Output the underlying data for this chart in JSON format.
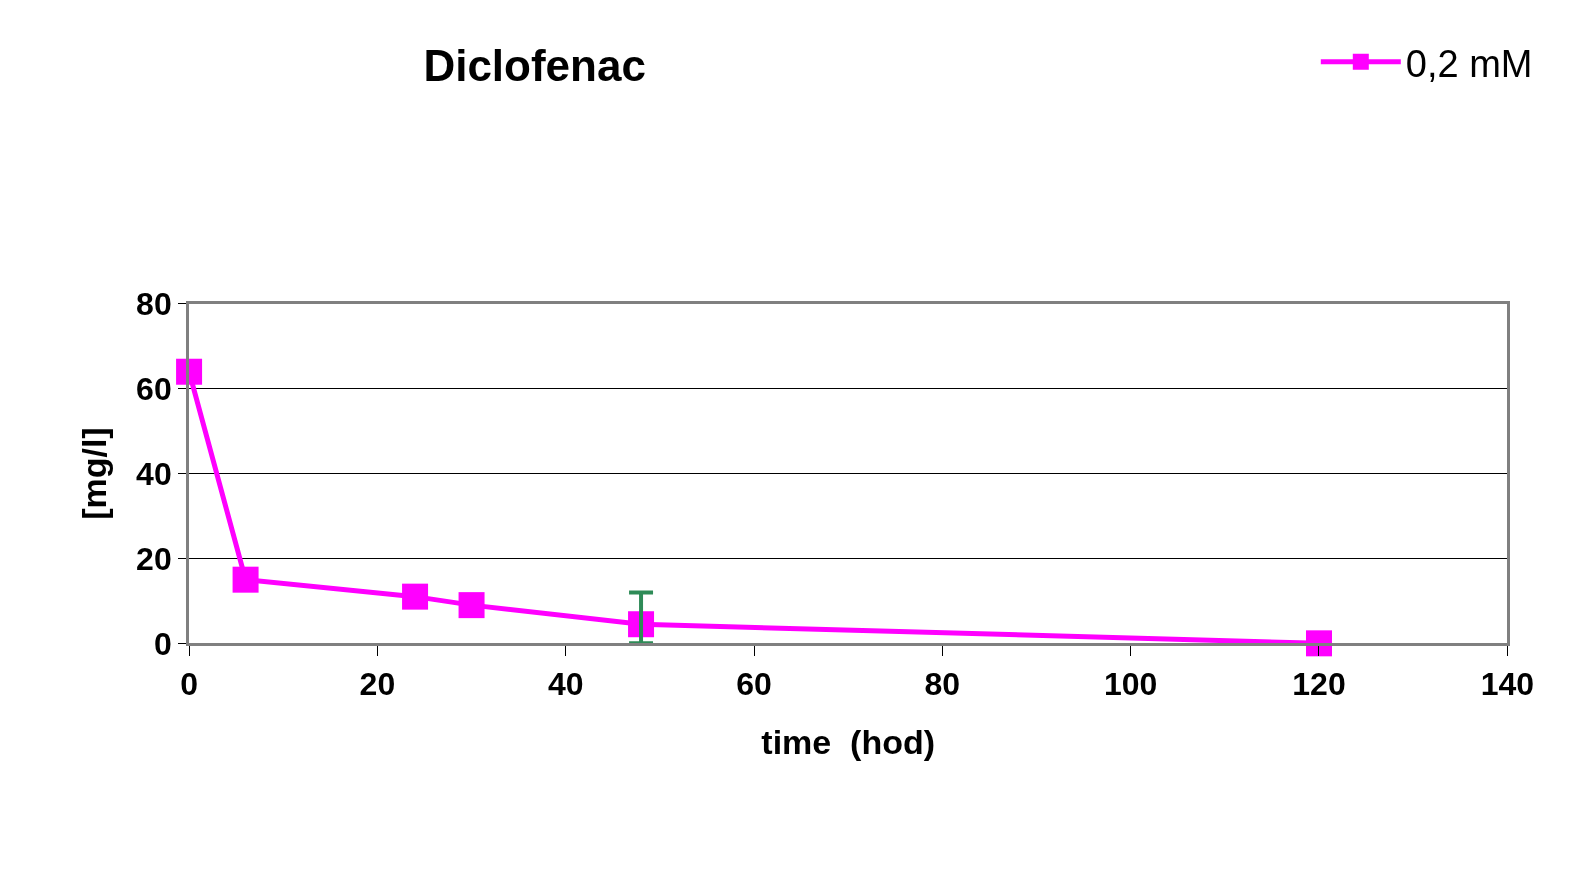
{
  "chart_data": {
    "type": "line",
    "title": "Diclofenac",
    "xlabel": "time  (hod)",
    "ylabel": "[mg/l]",
    "x": [
      0,
      6,
      24,
      30,
      48,
      120
    ],
    "series": [
      {
        "name": "0,2 mM",
        "color": "#ff00ff",
        "values": [
          64,
          15,
          11,
          9,
          4.5,
          0
        ],
        "errors": [
          null,
          null,
          null,
          null,
          [
            0,
            12
          ],
          null
        ]
      }
    ],
    "xlim": [
      0,
      140
    ],
    "xticks": [
      0,
      20,
      40,
      60,
      80,
      100,
      120,
      140
    ],
    "ylim": [
      0,
      80
    ],
    "yticks": [
      0,
      20,
      40,
      60,
      80
    ],
    "grid": "y",
    "legend": "top right",
    "marker": "square",
    "line_style": "solid"
  }
}
